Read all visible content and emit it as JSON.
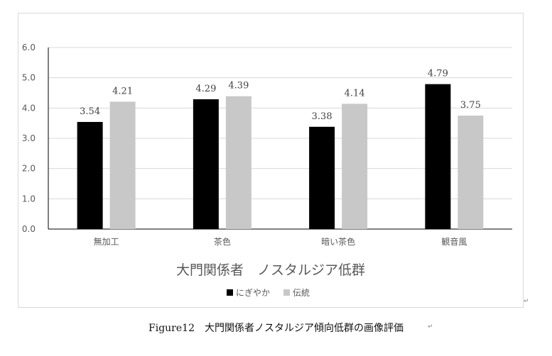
{
  "chart_data": {
    "type": "bar",
    "title": "大門関係者　ノスタルジア低群",
    "categories": [
      "無加工",
      "茶色",
      "暗い茶色",
      "観音風"
    ],
    "series": [
      {
        "name": "にぎやか",
        "values": [
          3.54,
          4.29,
          3.38,
          4.79
        ],
        "color": "#000000"
      },
      {
        "name": "伝統",
        "values": [
          4.21,
          4.39,
          4.14,
          3.75
        ],
        "color": "#c8c8c8"
      }
    ],
    "value_labels": [
      [
        "3.54",
        "4.29",
        "3.38",
        "4.79"
      ],
      [
        "4.21",
        "4.39",
        "4.14",
        "3.75"
      ]
    ],
    "ylim": [
      0,
      6
    ],
    "yticks": [
      "0.0",
      "1.0",
      "2.0",
      "3.0",
      "4.0",
      "5.0",
      "6.0"
    ],
    "grid": true,
    "legend_position": "bottom"
  },
  "caption": "Figure12　大門関係者ノスタルジア傾向低群の画像評価",
  "para_mark": "↵"
}
